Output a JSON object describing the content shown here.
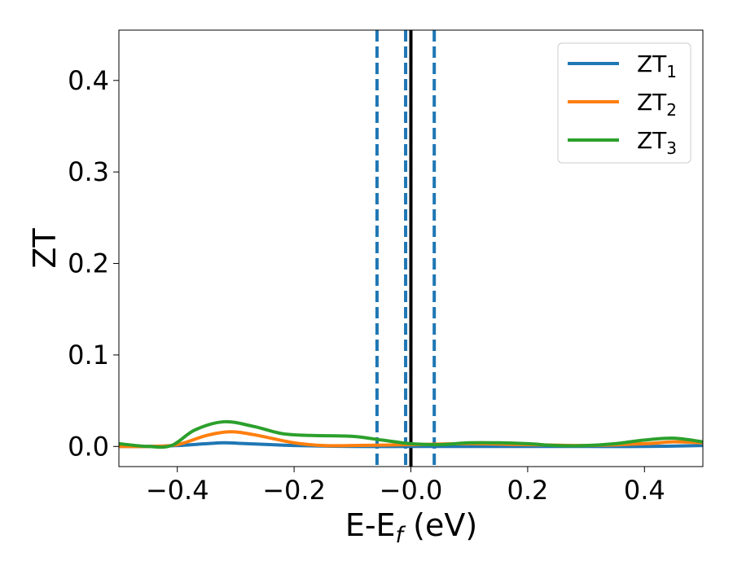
{
  "chart_data": {
    "type": "line",
    "xlabel": "E-E",
    "xlabel_sub": "f",
    "xlabel_unit": " (eV)",
    "ylabel": "ZT",
    "xlim": [
      -0.5,
      0.5
    ],
    "ylim": [
      -0.022,
      0.455
    ],
    "xticks": [
      -0.4,
      -0.2,
      0.0,
      0.2,
      0.4
    ],
    "xtick_labels": [
      "−0.4",
      "−0.2",
      "−0.0",
      "0.2",
      "0.4"
    ],
    "yticks": [
      0.0,
      0.1,
      0.2,
      0.3,
      0.4
    ],
    "ytick_labels": [
      "0.0",
      "0.1",
      "0.2",
      "0.3",
      "0.4"
    ],
    "grid": false,
    "legend_position": "top-right",
    "fermi_line": {
      "x": 0.0,
      "color": "#000000"
    },
    "dashed_lines": {
      "x": [
        -0.058,
        -0.009,
        0.04
      ],
      "color": "#1f77b4"
    },
    "series": [
      {
        "name": "ZT",
        "sub": "1",
        "color": "#1f77b4",
        "x": [
          -0.5,
          -0.45,
          -0.4,
          -0.35,
          -0.32,
          -0.28,
          -0.2,
          -0.1,
          0.0,
          0.1,
          0.2,
          0.3,
          0.4,
          0.5
        ],
        "y": [
          0.0,
          0.0,
          0.001,
          0.003,
          0.004,
          0.003,
          0.001,
          0.0,
          0.0,
          0.0,
          0.0,
          0.0,
          0.0,
          0.001
        ]
      },
      {
        "name": "ZT",
        "sub": "2",
        "color": "#ff7f0e",
        "x": [
          -0.5,
          -0.45,
          -0.4,
          -0.35,
          -0.31,
          -0.27,
          -0.2,
          -0.15,
          -0.1,
          0.0,
          0.1,
          0.2,
          0.3,
          0.4,
          0.45,
          0.5
        ],
        "y": [
          0.0,
          0.0,
          0.002,
          0.012,
          0.016,
          0.013,
          0.004,
          0.001,
          0.001,
          0.002,
          0.003,
          0.002,
          0.001,
          0.003,
          0.005,
          0.004
        ]
      },
      {
        "name": "ZT",
        "sub": "3",
        "color": "#2ca02c",
        "x": [
          -0.5,
          -0.45,
          -0.41,
          -0.37,
          -0.32,
          -0.27,
          -0.22,
          -0.17,
          -0.1,
          -0.05,
          0.0,
          0.05,
          0.1,
          0.15,
          0.2,
          0.25,
          0.3,
          0.35,
          0.4,
          0.45,
          0.5
        ],
        "y": [
          0.003,
          0.0,
          0.001,
          0.018,
          0.027,
          0.022,
          0.014,
          0.012,
          0.011,
          0.007,
          0.003,
          0.002,
          0.004,
          0.004,
          0.003,
          0.001,
          0.001,
          0.003,
          0.007,
          0.009,
          0.005
        ]
      }
    ]
  }
}
